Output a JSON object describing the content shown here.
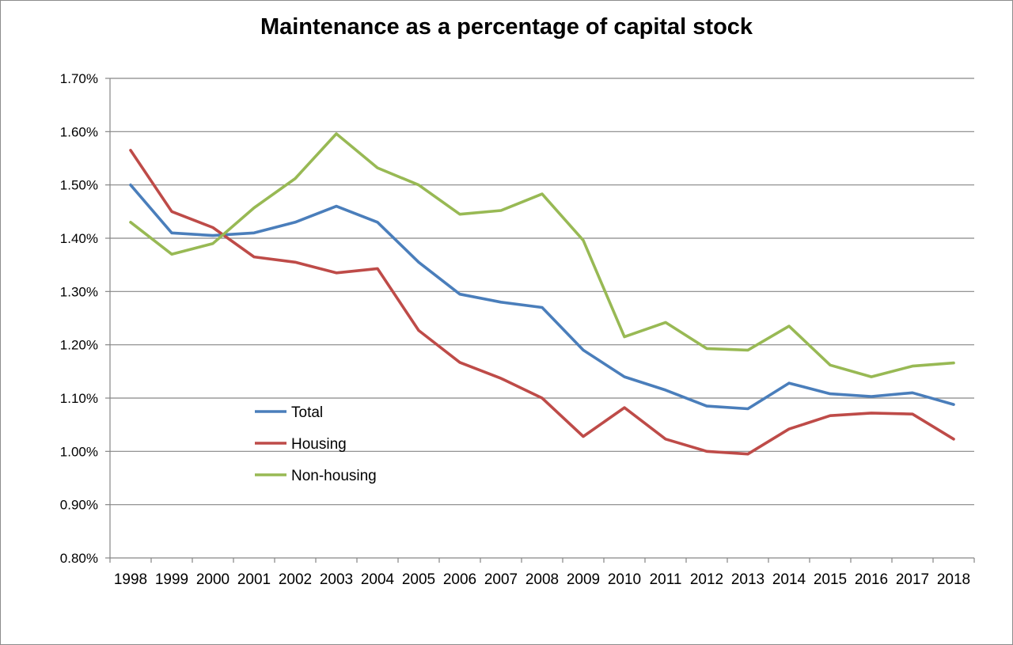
{
  "chart_data": {
    "type": "line",
    "title": "Maintenance as a percentage of capital stock",
    "xlabel": "",
    "ylabel": "",
    "ylim": [
      0.8,
      1.7
    ],
    "y_tick_labels": [
      "0.80%",
      "0.90%",
      "1.00%",
      "1.10%",
      "1.20%",
      "1.30%",
      "1.40%",
      "1.50%",
      "1.60%",
      "1.70%"
    ],
    "grid": "horizontal",
    "legend_position": "inside-lower-left",
    "categories": [
      "1998",
      "1999",
      "2000",
      "2001",
      "2002",
      "2003",
      "2004",
      "2005",
      "2006",
      "2007",
      "2008",
      "2009",
      "2010",
      "2011",
      "2012",
      "2013",
      "2014",
      "2015",
      "2016",
      "2017",
      "2018"
    ],
    "series": [
      {
        "name": "Total",
        "color": "#4a7ebb",
        "values": [
          1.5,
          1.41,
          1.405,
          1.41,
          1.43,
          1.46,
          1.43,
          1.355,
          1.295,
          1.28,
          1.27,
          1.19,
          1.14,
          1.115,
          1.085,
          1.08,
          1.128,
          1.108,
          1.103,
          1.11,
          1.088
        ]
      },
      {
        "name": "Housing",
        "color": "#be4b48",
        "values": [
          1.565,
          1.45,
          1.42,
          1.365,
          1.355,
          1.335,
          1.343,
          1.227,
          1.167,
          1.137,
          1.1,
          1.028,
          1.082,
          1.023,
          1.0,
          0.995,
          1.042,
          1.067,
          1.072,
          1.07,
          1.023
        ]
      },
      {
        "name": "Non-housing",
        "color": "#98b954",
        "values": [
          1.43,
          1.37,
          1.39,
          1.457,
          1.512,
          1.596,
          1.532,
          1.5,
          1.445,
          1.452,
          1.483,
          1.396,
          1.215,
          1.242,
          1.193,
          1.19,
          1.235,
          1.162,
          1.14,
          1.16,
          1.166
        ]
      }
    ]
  }
}
